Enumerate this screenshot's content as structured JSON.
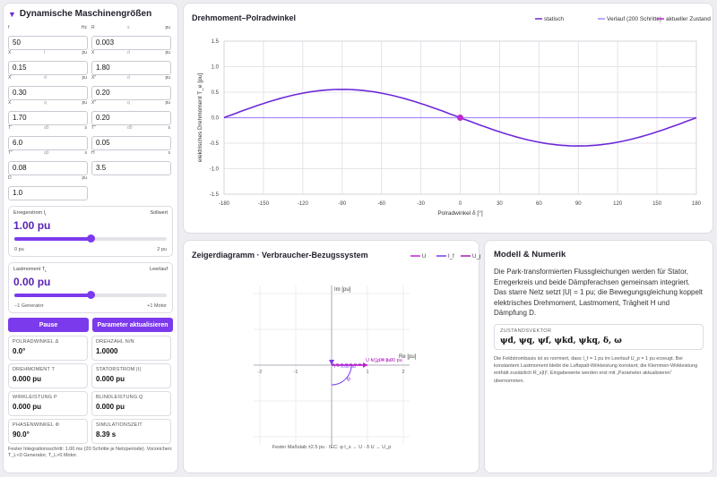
{
  "left_panel": {
    "title": "Dynamische Maschinengrößen",
    "params": [
      {
        "sym": "f",
        "sup": "",
        "unit": "Hz",
        "value": "50"
      },
      {
        "sym": "R",
        "sup": "s",
        "unit": "pu",
        "value": "0.003"
      },
      {
        "sym": "X",
        "sup": "l",
        "unit": "pu",
        "value": "0.15"
      },
      {
        "sym": "X",
        "sup": "d",
        "unit": "pu",
        "value": "1.80"
      },
      {
        "sym": "X′",
        "sup": "d",
        "unit": "pu",
        "value": "0.30"
      },
      {
        "sym": "X″",
        "sup": "d",
        "unit": "pu",
        "value": "0.20"
      },
      {
        "sym": "X",
        "sup": "q",
        "unit": "pu",
        "value": "1.70"
      },
      {
        "sym": "X″",
        "sup": "q",
        "unit": "pu",
        "value": "0.20"
      },
      {
        "sym": "T′",
        "sup": "d0",
        "unit": "s",
        "value": "6.0"
      },
      {
        "sym": "T″",
        "sup": "d0",
        "unit": "s",
        "value": "0.05"
      },
      {
        "sym": "T″",
        "sup": "q0",
        "unit": "s",
        "value": "0.08"
      },
      {
        "sym": "H",
        "sup": "",
        "unit": "s",
        "value": "3.5"
      },
      {
        "sym": "D",
        "sup": "",
        "unit": "pu",
        "value": "1.0"
      }
    ],
    "excitation": {
      "label": "Erregerstrom I",
      "sub": "f",
      "tag": "Sollwert",
      "value": "1.00 pu",
      "level": 0.5,
      "min": "0 pu",
      "max": "2 pu"
    },
    "load": {
      "label": "Lastmoment T",
      "sub": "L",
      "tag": "Leerlauf",
      "value": "0.00 pu",
      "level": 0.5,
      "min": "−1 Generator",
      "max": "+1 Motor"
    },
    "pause_label": "Pause",
    "update_label": "Parameter aktualisieren",
    "metrics": [
      {
        "label": "Polradwinkel δ",
        "value": "0.0°"
      },
      {
        "label": "Drehzahl n/N",
        "value": "1.0000"
      },
      {
        "label": "Drehmoment T",
        "value": "0.000 pu"
      },
      {
        "label": "Statorstrom |I|",
        "value": "0.000 pu"
      },
      {
        "label": "Wirkleistung P",
        "value": "0.000 pu"
      },
      {
        "label": "Blindleistung Q",
        "value": "0.000 pu"
      },
      {
        "label": "Phasenwinkel φ",
        "value": "90.0°"
      },
      {
        "label": "Simulationszeit",
        "value": "8.39 s"
      }
    ],
    "footnote": "Fester Integrationsschritt: 1.00 ms (20 Schritte je Netzperiode). Vorzeichen: T_L<0 Generator, T_L>0 Motor."
  },
  "torque_chart": {
    "title": "Drehmoment–Polradwinkel",
    "legend": [
      "statisch",
      "Verlauf (200 Schritte)",
      "aktueller Zustand"
    ],
    "colors": {
      "static": "#6d28d9",
      "history": "#a78bfa",
      "current": "#c026d3"
    },
    "ylabel": "elektrisches Drehmoment T_e [pu]",
    "xlabel": "Polradwinkel δ [°]"
  },
  "chart_data": {
    "type": "line",
    "xlabel": "Polradwinkel δ [°]",
    "ylabel": "elektrisches Drehmoment T_e [pu]",
    "xlim": [
      -180,
      180
    ],
    "ylim": [
      -1.5,
      1.5
    ],
    "xticks": [
      -180,
      -150,
      -120,
      -90,
      -60,
      -30,
      0,
      30,
      60,
      90,
      120,
      150,
      180
    ],
    "yticks": [
      1.5,
      1.0,
      0.5,
      0.0,
      -0.5,
      -1.0,
      -1.5
    ],
    "grid": true,
    "legend_position": "top-right",
    "series": [
      {
        "name": "statisch",
        "x": [
          -180,
          -150,
          -120,
          -90,
          -60,
          -30,
          0,
          30,
          60,
          90,
          120,
          150,
          180
        ],
        "y": [
          0.0,
          0.28,
          0.48,
          0.555,
          0.48,
          0.28,
          0.0,
          -0.28,
          -0.48,
          -0.555,
          -0.48,
          -0.28,
          0.0
        ]
      },
      {
        "name": "Verlauf (200 Schritte)",
        "x": [
          -180,
          180
        ],
        "y": [
          0.0,
          0.0
        ]
      },
      {
        "name": "aktueller Zustand",
        "x": [
          0
        ],
        "y": [
          0.0
        ]
      }
    ]
  },
  "phasor": {
    "title": "Zeigerdiagramm · Verbraucher-Bezugssystem",
    "legend": [
      "U",
      "I_f",
      "U_p"
    ],
    "axis_re": "Re [pu]",
    "axis_im": "Im [pu]",
    "ticks": [
      "-2",
      "-1",
      "1",
      "2"
    ],
    "labels": {
      "u": "U = 1.00 pu",
      "i": "I = 0.00 pu",
      "up": "U_p = 1.00 pu",
      "phi": "φ"
    },
    "caption": "Fester Maßstab ±2.5 pu · IEC: φ I_s → U · δ U → U_p",
    "colors": {
      "u": "#c026d3",
      "i": "#7c3aed",
      "up": "#a21caf"
    }
  },
  "model": {
    "title": "Modell & Numerik",
    "description": "Die Park-transformierten Flussgleichungen werden für Stator, Erregerkreis und beide Dämpferachsen gemeinsam integriert. Das starre Netz setzt |U| = 1 pu; die Bewegungsgleichung koppelt elektrisches Drehmoment, Lastmoment, Trägheit H und Dämpfung D.",
    "state_label": "ZUSTANDSVEKTOR",
    "state_vector": "ψd, ψq, ψf, ψkd, ψkq, δ, ω",
    "note": "Die Feldstrombasis ist so normiert, dass I_f = 1 pu im Leerlauf U_p = 1 pu erzeugt. Bei konstantem Lastmoment bleibt die Luftspalt-Wirkleistung konstant; die Klemmen-Wirkleistung enthält zusätzlich R_s|I|². Eingabewerte werden erst mit „Parameter aktualisieren“ übernommen."
  }
}
